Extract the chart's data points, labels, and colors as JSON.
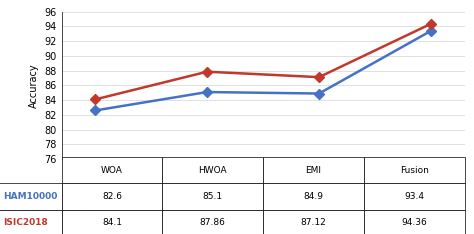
{
  "categories": [
    "WOA",
    "HWOA",
    "EMI",
    "Fusion"
  ],
  "ham10000": [
    82.6,
    85.1,
    84.9,
    93.4
  ],
  "isic2018": [
    84.1,
    87.86,
    87.12,
    94.36
  ],
  "ham_color": "#4472c4",
  "isic_color": "#c0392b",
  "ylabel": "Accuracy",
  "ylim": [
    76,
    96
  ],
  "yticks": [
    76,
    78,
    80,
    82,
    84,
    86,
    88,
    90,
    92,
    94,
    96
  ],
  "table_rows": [
    [
      "",
      "WOA",
      "HWOA",
      "EMI",
      "Fusion"
    ],
    [
      "HAM10000",
      "82.6",
      "85.1",
      "84.9",
      "93.4"
    ],
    [
      "ISIC2018",
      "84.1",
      "87.86",
      "87.12",
      "94.36"
    ]
  ],
  "legend_labels": [
    "HAM10000",
    "ISIC2018"
  ],
  "marker": "D",
  "linewidth": 1.8,
  "markersize": 5
}
